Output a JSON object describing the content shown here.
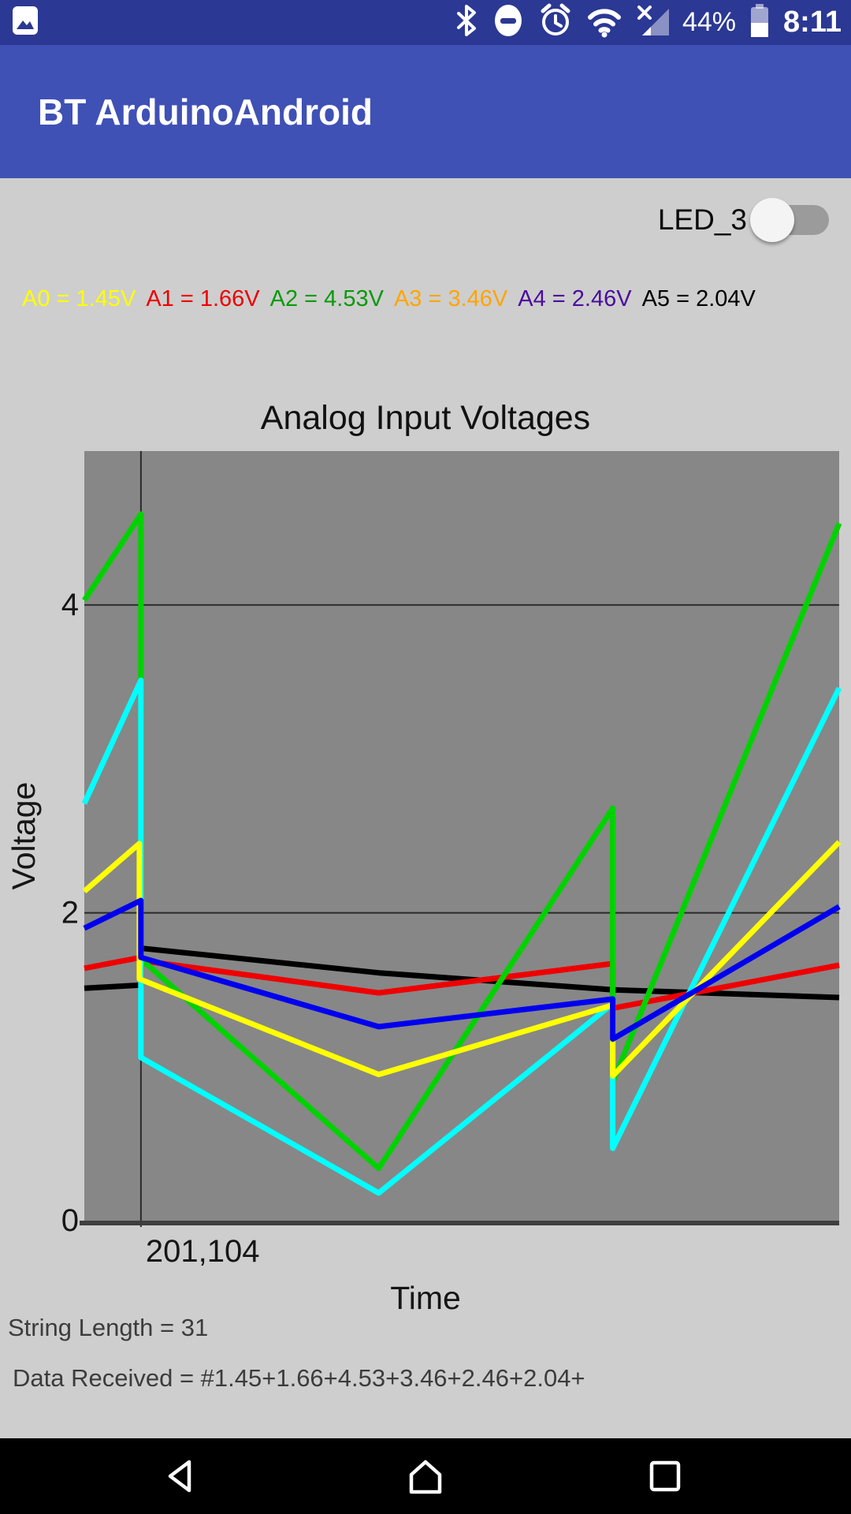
{
  "status_bar": {
    "time": "8:11",
    "battery_percent": "44%",
    "icons": [
      "photo-notification",
      "bluetooth",
      "do-not-disturb",
      "alarm",
      "wifi",
      "cellular-no-signal",
      "battery"
    ]
  },
  "app_bar": {
    "title": "BT ArduinoAndroid"
  },
  "led_control": {
    "label": "LED_3",
    "state": "off"
  },
  "voltages": [
    {
      "channel": "A0",
      "text": "A0 = 1.45V",
      "color": "#ffff00"
    },
    {
      "channel": "A1",
      "text": "A1 = 1.66V",
      "color": "#ee0000"
    },
    {
      "channel": "A2",
      "text": "A2 = 4.53V",
      "color": "#0a9a0a"
    },
    {
      "channel": "A3",
      "text": "A3 = 3.46V",
      "color": "#ffa500"
    },
    {
      "channel": "A4",
      "text": "A4 = 2.46V",
      "color": "#4b0d9b"
    },
    {
      "channel": "A5",
      "text": "A5 = 2.04V",
      "color": "#000000"
    }
  ],
  "chart_data": {
    "type": "line",
    "title": "Analog Input Voltages",
    "xlabel": "Time",
    "ylabel": "Voltage",
    "ylim": [
      0,
      5
    ],
    "yticks": [
      0,
      2,
      4
    ],
    "xticks": [
      {
        "label": "201,104",
        "x_frac": 0.075
      }
    ],
    "grid": true,
    "plot_background": "#878787",
    "axis_color": "#3f3f3f",
    "grid_color": "#2a2a2a",
    "series": [
      {
        "name": "A0",
        "color": "#000000",
        "points": [
          [
            0,
            1.51
          ],
          [
            0.075,
            1.53
          ],
          [
            0.075,
            1.77
          ],
          [
            0.39,
            1.61
          ],
          [
            0.7,
            1.5
          ],
          [
            1,
            1.45
          ]
        ]
      },
      {
        "name": "A1",
        "color": "#ee0000",
        "points": [
          [
            0,
            1.64
          ],
          [
            0.075,
            1.71
          ],
          [
            0.075,
            1.69
          ],
          [
            0.39,
            1.48
          ],
          [
            0.7,
            1.67
          ],
          [
            0.7,
            1.38
          ],
          [
            1,
            1.66
          ]
        ]
      },
      {
        "name": "A2",
        "color": "#00d200",
        "points": [
          [
            0,
            4.03
          ],
          [
            0.075,
            4.59
          ],
          [
            0.075,
            1.7
          ],
          [
            0.39,
            0.34
          ],
          [
            0.7,
            2.68
          ],
          [
            0.7,
            0.9
          ],
          [
            1,
            4.53
          ]
        ]
      },
      {
        "name": "A3",
        "color": "#00ffff",
        "points": [
          [
            0,
            2.71
          ],
          [
            0.075,
            3.51
          ],
          [
            0.075,
            1.06
          ],
          [
            0.39,
            0.18
          ],
          [
            0.7,
            1.41
          ],
          [
            0.7,
            0.47
          ],
          [
            1,
            3.46
          ]
        ]
      },
      {
        "name": "A4",
        "color": "#ffff00",
        "points": [
          [
            0,
            2.14
          ],
          [
            0.073,
            2.45
          ],
          [
            0.073,
            1.57
          ],
          [
            0.39,
            0.95
          ],
          [
            0.7,
            1.4
          ],
          [
            0.7,
            0.94
          ],
          [
            1,
            2.46
          ]
        ]
      },
      {
        "name": "A5",
        "color": "#0000ee",
        "points": [
          [
            0,
            1.9
          ],
          [
            0.075,
            2.08
          ],
          [
            0.075,
            1.71
          ],
          [
            0.39,
            1.26
          ],
          [
            0.7,
            1.44
          ],
          [
            0.7,
            1.18
          ],
          [
            1,
            2.04
          ]
        ]
      }
    ]
  },
  "footer": {
    "string_length_text": "String Length = 31",
    "data_received_text": "Data Received = #1.45+1.66+4.53+3.46+2.46+2.04+"
  },
  "nav_bar": {
    "icons": [
      "back",
      "home",
      "recents"
    ]
  }
}
